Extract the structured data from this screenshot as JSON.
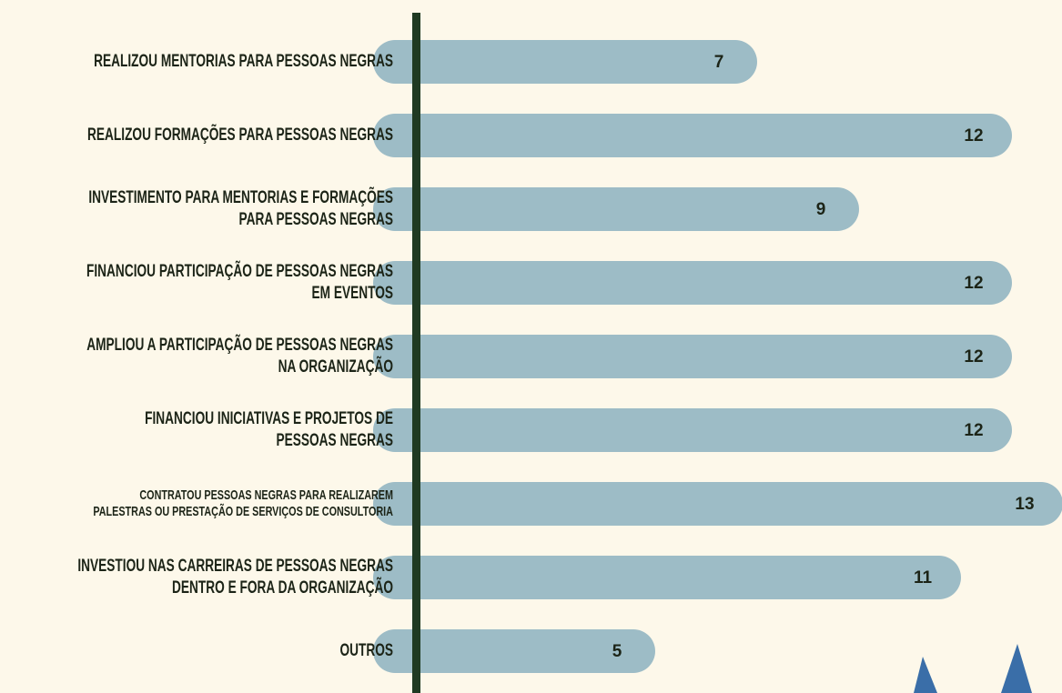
{
  "chart_data": {
    "type": "bar",
    "orientation": "horizontal",
    "categories": [
      "REALIZOU MENTORIAS PARA PESSOAS NEGRAS",
      "REALIZOU FORMAÇÕES PARA PESSOAS NEGRAS",
      "INVESTIMENTO PARA MENTORIAS E FORMAÇÕES\nPARA PESSOAS NEGRAS",
      "FINANCIOU PARTICIPAÇÃO DE PESSOAS NEGRAS\nEM EVENTOS",
      "AMPLIOU A  PARTICIPAÇÃO DE PESSOAS NEGRAS\nNA ORGANIZAÇÃO",
      "FINANCIOU INICIATIVAS E PROJETOS DE\nPESSOAS NEGRAS",
      "CONTRATOU PESSOAS NEGRAS PARA REALIZAREM\nPALESTRAS OU PRESTAÇÃO DE SERVIÇOS DE CONSULTORIA",
      "INVESTIOU NAS CARREIRAS DE PESSOAS NEGRAS\nDENTRO E FORA DA ORGANIZAÇÃO",
      "OUTROS"
    ],
    "values": [
      7,
      12,
      9,
      12,
      12,
      12,
      13,
      11,
      5
    ],
    "color": "#9dbcc6"
  }
}
